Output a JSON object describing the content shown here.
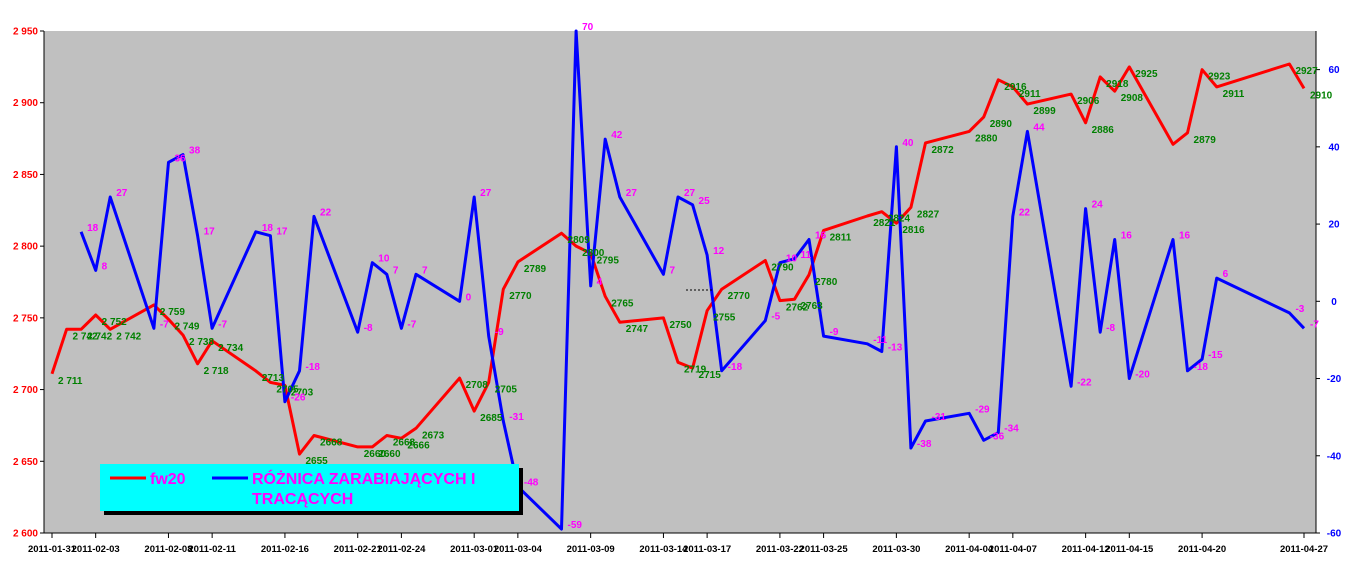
{
  "chart_data": {
    "type": "line",
    "xlim": [
      "2011-01-31",
      "2011-04-27"
    ],
    "x_tick_labels": [
      "2011-01-31",
      "2011-02-03",
      "2011-02-08",
      "2011-02-11",
      "2011-02-16",
      "2011-02-21",
      "2011-02-24",
      "2011-03-01",
      "2011-03-04",
      "2011-03-09",
      "2011-03-14",
      "2011-03-17",
      "2011-03-22",
      "2011-03-25",
      "2011-03-30",
      "2011-04-04",
      "2011-04-07",
      "2011-04-12",
      "2011-04-15",
      "2011-04-20",
      "2011-04-27"
    ],
    "y_left": {
      "ylim": [
        2600,
        2950
      ],
      "ticks": [
        2600,
        2650,
        2700,
        2750,
        2800,
        2850,
        2900,
        2950
      ],
      "tick_labels": [
        "2 600",
        "2 650",
        "2 700",
        "2 750",
        "2 800",
        "2 850",
        "2 900",
        "2 950"
      ],
      "color": "#ff0000"
    },
    "y_right": {
      "ylim": [
        -60,
        70
      ],
      "ticks": [
        -60,
        -40,
        -20,
        0,
        20,
        40,
        60
      ],
      "tick_labels": [
        "-60",
        "-40",
        "-20",
        "0",
        "20",
        "40",
        "60"
      ],
      "color": "#0000ff"
    },
    "grid": false,
    "plot_background": "#c0c0c0",
    "series": [
      {
        "name": "fw20",
        "axis": "left",
        "color": "#ff0000",
        "label_color": "#008000",
        "points": [
          {
            "x": "2011-01-31",
            "y": 2711,
            "label": "2 711"
          },
          {
            "x": "2011-02-01",
            "y": 2742,
            "label": "2 742"
          },
          {
            "x": "2011-02-02",
            "y": 2742,
            "label": "2 742"
          },
          {
            "x": "2011-02-03",
            "y": 2752,
            "label": "2 752"
          },
          {
            "x": "2011-02-04",
            "y": 2742,
            "label": "2 742"
          },
          {
            "x": "2011-02-07",
            "y": 2759,
            "label": "2 759"
          },
          {
            "x": "2011-02-08",
            "y": 2749,
            "label": "2 749"
          },
          {
            "x": "2011-02-09",
            "y": 2738,
            "label": "2 738"
          },
          {
            "x": "2011-02-10",
            "y": 2718,
            "label": "2 718"
          },
          {
            "x": "2011-02-11",
            "y": 2734,
            "label": "2 734"
          },
          {
            "x": "2011-02-14",
            "y": 2713,
            "label": "2713"
          },
          {
            "x": "2011-02-15",
            "y": 2705,
            "label": "2705"
          },
          {
            "x": "2011-02-16",
            "y": 2703,
            "label": "2703"
          },
          {
            "x": "2011-02-17",
            "y": 2655,
            "label": "2655"
          },
          {
            "x": "2011-02-18",
            "y": 2668,
            "label": "2668"
          },
          {
            "x": "2011-02-21",
            "y": 2660,
            "label": "2660"
          },
          {
            "x": "2011-02-22",
            "y": 2660,
            "label": "2660"
          },
          {
            "x": "2011-02-23",
            "y": 2668,
            "label": "2668"
          },
          {
            "x": "2011-02-24",
            "y": 2666,
            "label": "2666"
          },
          {
            "x": "2011-02-25",
            "y": 2673,
            "label": "2673"
          },
          {
            "x": "2011-02-28",
            "y": 2708,
            "label": "2708"
          },
          {
            "x": "2011-03-01",
            "y": 2685,
            "label": "2685"
          },
          {
            "x": "2011-03-02",
            "y": 2705,
            "label": "2705"
          },
          {
            "x": "2011-03-03",
            "y": 2770,
            "label": "2770"
          },
          {
            "x": "2011-03-04",
            "y": 2789,
            "label": "2789"
          },
          {
            "x": "2011-03-07",
            "y": 2809,
            "label": "2809"
          },
          {
            "x": "2011-03-08",
            "y": 2800,
            "label": "2800"
          },
          {
            "x": "2011-03-09",
            "y": 2795,
            "label": "2795"
          },
          {
            "x": "2011-03-10",
            "y": 2765,
            "label": "2765"
          },
          {
            "x": "2011-03-11",
            "y": 2747,
            "label": "2747"
          },
          {
            "x": "2011-03-14",
            "y": 2750,
            "label": "2750"
          },
          {
            "x": "2011-03-15",
            "y": 2719,
            "label": "2719"
          },
          {
            "x": "2011-03-16",
            "y": 2715,
            "label": "2715"
          },
          {
            "x": "2011-03-17",
            "y": 2755,
            "label": "2755"
          },
          {
            "x": "2011-03-18",
            "y": 2770,
            "label": "2770"
          },
          {
            "x": "2011-03-21",
            "y": 2790,
            "label": "2790"
          },
          {
            "x": "2011-03-22",
            "y": 2762,
            "label": "2762"
          },
          {
            "x": "2011-03-23",
            "y": 2763,
            "label": "2763"
          },
          {
            "x": "2011-03-24",
            "y": 2780,
            "label": "2780"
          },
          {
            "x": "2011-03-25",
            "y": 2811,
            "label": "2811"
          },
          {
            "x": "2011-03-28",
            "y": 2821,
            "label": "2821"
          },
          {
            "x": "2011-03-29",
            "y": 2824,
            "label": "2824"
          },
          {
            "x": "2011-03-30",
            "y": 2816,
            "label": "2816"
          },
          {
            "x": "2011-03-31",
            "y": 2827,
            "label": "2827"
          },
          {
            "x": "2011-04-01",
            "y": 2872,
            "label": "2872"
          },
          {
            "x": "2011-04-04",
            "y": 2880,
            "label": "2880"
          },
          {
            "x": "2011-04-05",
            "y": 2890,
            "label": "2890"
          },
          {
            "x": "2011-04-06",
            "y": 2916,
            "label": "2916"
          },
          {
            "x": "2011-04-07",
            "y": 2911,
            "label": "2911"
          },
          {
            "x": "2011-04-08",
            "y": 2899,
            "label": "2899"
          },
          {
            "x": "2011-04-11",
            "y": 2906,
            "label": "2906"
          },
          {
            "x": "2011-04-12",
            "y": 2886,
            "label": "2886"
          },
          {
            "x": "2011-04-13",
            "y": 2918,
            "label": "2918"
          },
          {
            "x": "2011-04-14",
            "y": 2908,
            "label": "2908"
          },
          {
            "x": "2011-04-15",
            "y": 2925,
            "label": "2925"
          },
          {
            "x": "2011-04-18",
            "y": 2871,
            "label": ""
          },
          {
            "x": "2011-04-19",
            "y": 2879,
            "label": "2879"
          },
          {
            "x": "2011-04-20",
            "y": 2923,
            "label": "2923"
          },
          {
            "x": "2011-04-21",
            "y": 2911,
            "label": "2911"
          },
          {
            "x": "2011-04-26",
            "y": 2927,
            "label": "2927"
          },
          {
            "x": "2011-04-27",
            "y": 2910,
            "label": "2910"
          }
        ]
      },
      {
        "name": "RÓŻNICA ZARABIAJĄCYCH I TRACĄCYCH",
        "axis": "right",
        "color": "#0000ff",
        "label_color": "#ff00ff",
        "points": [
          {
            "x": "2011-02-02",
            "y": 18,
            "label": "18"
          },
          {
            "x": "2011-02-03",
            "y": 8,
            "label": "8"
          },
          {
            "x": "2011-02-04",
            "y": 27,
            "label": "27"
          },
          {
            "x": "2011-02-07",
            "y": -7,
            "label": "-7"
          },
          {
            "x": "2011-02-08",
            "y": 36,
            "label": "36"
          },
          {
            "x": "2011-02-09",
            "y": 38,
            "label": "38"
          },
          {
            "x": "2011-02-10",
            "y": 17,
            "label": "17"
          },
          {
            "x": "2011-02-11",
            "y": -7,
            "label": "-7"
          },
          {
            "x": "2011-02-14",
            "y": 18,
            "label": "18"
          },
          {
            "x": "2011-02-15",
            "y": 17,
            "label": "17"
          },
          {
            "x": "2011-02-16",
            "y": -26,
            "label": "-26"
          },
          {
            "x": "2011-02-17",
            "y": -18,
            "label": "-18"
          },
          {
            "x": "2011-02-18",
            "y": 22,
            "label": "22"
          },
          {
            "x": "2011-02-21",
            "y": -8,
            "label": "-8"
          },
          {
            "x": "2011-02-22",
            "y": 10,
            "label": "10"
          },
          {
            "x": "2011-02-23",
            "y": 7,
            "label": "7"
          },
          {
            "x": "2011-02-24",
            "y": -7,
            "label": "-7"
          },
          {
            "x": "2011-02-25",
            "y": 7,
            "label": "7"
          },
          {
            "x": "2011-02-28",
            "y": 0,
            "label": "0"
          },
          {
            "x": "2011-03-01",
            "y": 27,
            "label": "27"
          },
          {
            "x": "2011-03-02",
            "y": -9,
            "label": "-9"
          },
          {
            "x": "2011-03-03",
            "y": -31,
            "label": "-31"
          },
          {
            "x": "2011-03-04",
            "y": -48,
            "label": "-48"
          },
          {
            "x": "2011-03-07",
            "y": -59,
            "label": "-59"
          },
          {
            "x": "2011-03-08",
            "y": 70,
            "label": "70"
          },
          {
            "x": "2011-03-09",
            "y": 4,
            "label": "4"
          },
          {
            "x": "2011-03-10",
            "y": 42,
            "label": "42"
          },
          {
            "x": "2011-03-11",
            "y": 27,
            "label": "27"
          },
          {
            "x": "2011-03-14",
            "y": 7,
            "label": "7"
          },
          {
            "x": "2011-03-15",
            "y": 27,
            "label": "27"
          },
          {
            "x": "2011-03-16",
            "y": 25,
            "label": "25"
          },
          {
            "x": "2011-03-17",
            "y": 12,
            "label": "12"
          },
          {
            "x": "2011-03-18",
            "y": -18,
            "label": "-18"
          },
          {
            "x": "2011-03-21",
            "y": -5,
            "label": "-5"
          },
          {
            "x": "2011-03-22",
            "y": 10,
            "label": "10"
          },
          {
            "x": "2011-03-23",
            "y": 11,
            "label": "11"
          },
          {
            "x": "2011-03-24",
            "y": 16,
            "label": "16"
          },
          {
            "x": "2011-03-25",
            "y": -9,
            "label": "-9"
          },
          {
            "x": "2011-03-28",
            "y": -11,
            "label": "-11"
          },
          {
            "x": "2011-03-29",
            "y": -13,
            "label": "-13"
          },
          {
            "x": "2011-03-30",
            "y": 40,
            "label": "40"
          },
          {
            "x": "2011-03-31",
            "y": -38,
            "label": "-38"
          },
          {
            "x": "2011-04-01",
            "y": -31,
            "label": "-31"
          },
          {
            "x": "2011-04-04",
            "y": -29,
            "label": "-29"
          },
          {
            "x": "2011-04-05",
            "y": -36,
            "label": "-36"
          },
          {
            "x": "2011-04-06",
            "y": -34,
            "label": "-34"
          },
          {
            "x": "2011-04-07",
            "y": 22,
            "label": "22"
          },
          {
            "x": "2011-04-08",
            "y": 44,
            "label": "44"
          },
          {
            "x": "2011-04-11",
            "y": -22,
            "label": "-22"
          },
          {
            "x": "2011-04-12",
            "y": 24,
            "label": "24"
          },
          {
            "x": "2011-04-13",
            "y": -8,
            "label": "-8"
          },
          {
            "x": "2011-04-14",
            "y": 16,
            "label": "16"
          },
          {
            "x": "2011-04-15",
            "y": -20,
            "label": "-20"
          },
          {
            "x": "2011-04-18",
            "y": 16,
            "label": "16"
          },
          {
            "x": "2011-04-19",
            "y": -18,
            "label": "-18"
          },
          {
            "x": "2011-04-20",
            "y": -15,
            "label": "-15"
          },
          {
            "x": "2011-04-21",
            "y": 6,
            "label": "6"
          },
          {
            "x": "2011-04-26",
            "y": -3,
            "label": "-3"
          },
          {
            "x": "2011-04-27",
            "y": -7,
            "label": "-7"
          }
        ]
      }
    ],
    "legend": {
      "placement": "bottom-left",
      "background": "#00ffff",
      "items": [
        {
          "label": "fw20",
          "color": "#ff0000"
        },
        {
          "label_lines": [
            "RÓŻNICA ZARABIAJĄCYCH I",
            "TRACĄCYCH"
          ],
          "color": "#0000ff"
        }
      ]
    }
  }
}
